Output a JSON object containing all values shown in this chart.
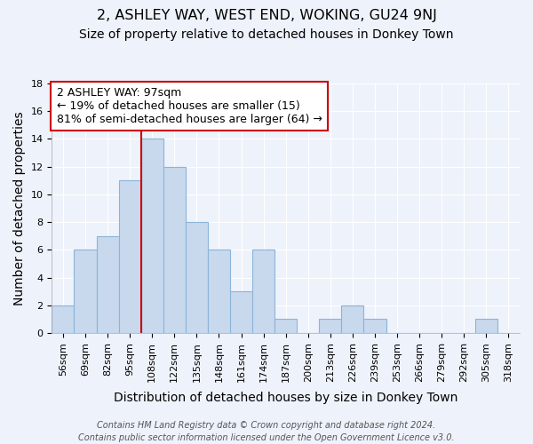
{
  "title": "2, ASHLEY WAY, WEST END, WOKING, GU24 9NJ",
  "subtitle": "Size of property relative to detached houses in Donkey Town",
  "xlabel": "Distribution of detached houses by size in Donkey Town",
  "ylabel": "Number of detached properties",
  "footer_line1": "Contains HM Land Registry data © Crown copyright and database right 2024.",
  "footer_line2": "Contains public sector information licensed under the Open Government Licence v3.0.",
  "bin_labels": [
    "56sqm",
    "69sqm",
    "82sqm",
    "95sqm",
    "108sqm",
    "122sqm",
    "135sqm",
    "148sqm",
    "161sqm",
    "174sqm",
    "187sqm",
    "200sqm",
    "213sqm",
    "226sqm",
    "239sqm",
    "253sqm",
    "266sqm",
    "279sqm",
    "292sqm",
    "305sqm",
    "318sqm"
  ],
  "bar_heights": [
    2,
    6,
    7,
    11,
    14,
    12,
    8,
    6,
    3,
    6,
    1,
    0,
    1,
    2,
    1,
    0,
    0,
    0,
    0,
    1,
    0
  ],
  "bar_color": "#c8d9ee",
  "bar_edge_color": "#8cb4d8",
  "ylim": [
    0,
    18
  ],
  "yticks": [
    0,
    2,
    4,
    6,
    8,
    10,
    12,
    14,
    16,
    18
  ],
  "annotation_text_line1": "2 ASHLEY WAY: 97sqm",
  "annotation_text_line2": "← 19% of detached houses are smaller (15)",
  "annotation_text_line3": "81% of semi-detached houses are larger (64) →",
  "annotation_box_color": "#ffffff",
  "annotation_box_edge_color": "#cc0000",
  "property_line_color": "#cc0000",
  "property_line_x": 3.5,
  "background_color": "#eef2fb",
  "grid_color": "#ffffff",
  "title_fontsize": 11.5,
  "subtitle_fontsize": 10,
  "axis_label_fontsize": 10,
  "tick_fontsize": 8,
  "annotation_fontsize": 9,
  "footer_fontsize": 7
}
